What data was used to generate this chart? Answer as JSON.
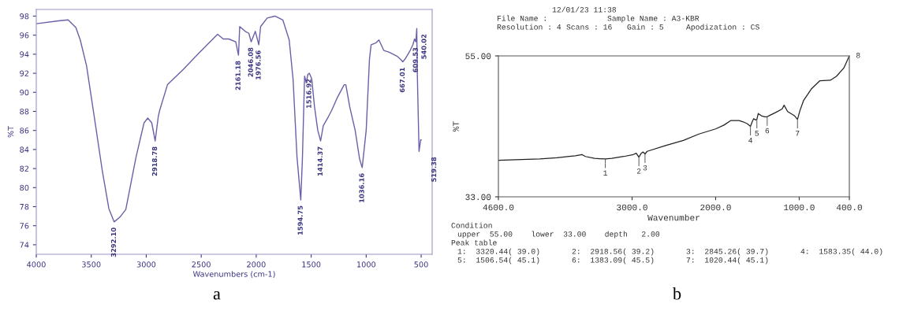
{
  "chart_data": [
    {
      "type": "line",
      "xlabel": "Wavenumbers (cm-1)",
      "ylabel": "%T",
      "xlim": [
        4000,
        400
      ],
      "xticks": [
        4000,
        3500,
        3000,
        2500,
        2000,
        1500,
        1000,
        500
      ],
      "ylim": [
        73,
        98.7
      ],
      "yticks": [
        74,
        76,
        78,
        80,
        82,
        84,
        86,
        88,
        90,
        92,
        94,
        96,
        98
      ],
      "grid": false,
      "series": [
        {
          "color": "#6a5fa8",
          "x": [
            4000,
            3800,
            3710,
            3640,
            3600,
            3543,
            3471,
            3400,
            3340,
            3292.1,
            3240,
            3186,
            3093,
            3020,
            2986,
            2950,
            2918.78,
            2890,
            2878,
            2807,
            2664,
            2472,
            2351,
            2300,
            2250,
            2186,
            2161.18,
            2150,
            2100,
            2067,
            2046.08,
            2008,
            1976.56,
            1960,
            1900,
            1829,
            1758,
            1700,
            1665,
            1629,
            1594.75,
            1580,
            1560,
            1545,
            1530,
            1516.92,
            1495,
            1470,
            1440,
            1414.37,
            1390,
            1350,
            1314,
            1260,
            1200,
            1185,
            1150,
            1100,
            1060,
            1036.16,
            1000,
            970,
            955,
            910,
            884,
            840,
            790,
            720,
            690,
            667.01,
            640,
            600,
            575,
            560,
            548,
            540.02,
            535,
            519.38,
            505,
            500
          ],
          "values": [
            97.2,
            97.5,
            97.6,
            96.8,
            95.5,
            92.8,
            87.3,
            81.8,
            77.8,
            76.4,
            76.9,
            77.7,
            83.2,
            86.8,
            87.3,
            86.8,
            84.9,
            87.5,
            88.1,
            90.8,
            92.4,
            94.7,
            96.1,
            95.6,
            95.6,
            95.3,
            93.9,
            96.9,
            96.4,
            96.2,
            95.3,
            96.4,
            95.0,
            96.9,
            97.8,
            98.0,
            97.6,
            95.5,
            91.4,
            83.2,
            78.7,
            83.0,
            91.7,
            91.0,
            91.9,
            92.0,
            91.4,
            88.5,
            86.0,
            84.9,
            86.5,
            87.3,
            88.1,
            89.5,
            90.8,
            90.8,
            88.5,
            86.0,
            83.0,
            82.1,
            86.0,
            93.5,
            95.0,
            95.2,
            95.5,
            94.4,
            94.2,
            93.8,
            93.5,
            93.2,
            93.6,
            94.4,
            95.0,
            95.6,
            95.3,
            96.7,
            92.0,
            83.8,
            85.0,
            85.0
          ]
        }
      ],
      "annotations": [
        {
          "text": "3292.10",
          "x": 3292.1,
          "y": 76.4
        },
        {
          "text": "2918.78",
          "x": 2918.78,
          "y": 84.9
        },
        {
          "text": "2161.18",
          "x": 2161.18,
          "y": 93.9
        },
        {
          "text": "2046.08",
          "x": 2046.08,
          "y": 95.3
        },
        {
          "text": "1976.56",
          "x": 1976.56,
          "y": 95.0
        },
        {
          "text": "1594.75",
          "x": 1594.75,
          "y": 78.7
        },
        {
          "text": "1516.92",
          "x": 1516.92,
          "y": 92.0
        },
        {
          "text": "1414.37",
          "x": 1414.37,
          "y": 84.9
        },
        {
          "text": "1036.16",
          "x": 1036.16,
          "y": 82.1
        },
        {
          "text": "667.01",
          "x": 667.01,
          "y": 93.2
        },
        {
          "text": "609.53",
          "x": 548,
          "y": 95.3
        },
        {
          "text": "540.02",
          "x": 540.02,
          "y": 96.7
        },
        {
          "text": "519.38",
          "x": 519.38,
          "y": 83.8
        },
        "a"
      ]
    },
    {
      "type": "line",
      "xlabel": "Wavenumber",
      "ylabel": "%T",
      "xlim": [
        4600,
        400
      ],
      "xticks": [
        {
          "value": 4600,
          "label": "4600.0"
        },
        {
          "value": 3000,
          "label": "3000.0"
        },
        {
          "value": 2000,
          "label": "2000.0"
        },
        {
          "value": 1000,
          "label": "1000.0"
        },
        {
          "value": 400,
          "label": "400.0"
        }
      ],
      "ylim": [
        33,
        55
      ],
      "yticks": [
        {
          "value": 33,
          "label": "33.00"
        },
        {
          "value": 55,
          "label": "55.00"
        }
      ],
      "grid": false,
      "series": [
        {
          "color": "#222222",
          "x": [
            4600,
            4400,
            4105,
            3900,
            3750,
            3680,
            3600,
            3560,
            3450,
            3320.44,
            3243,
            3100,
            2985,
            2950,
            2918.56,
            2890,
            2870,
            2845.26,
            2820,
            2600,
            2387,
            2200,
            2000,
            1900,
            1821,
            1720,
            1669,
            1620,
            1583.35,
            1560,
            1545,
            1520,
            1506.54,
            1490,
            1446,
            1410,
            1383.09,
            1340,
            1291,
            1205,
            1181,
            1138,
            1060,
            1020.44,
            990,
            949,
            857,
            755,
            628,
            555,
            466,
            400
          ],
          "values": [
            38.7,
            38.8,
            38.9,
            39.1,
            39.3,
            39.4,
            39.6,
            39.3,
            39.0,
            38.9,
            39.0,
            39.3,
            39.6,
            39.8,
            39.2,
            39.8,
            40.0,
            39.7,
            40.1,
            41.0,
            41.8,
            42.8,
            43.6,
            44.2,
            44.9,
            44.9,
            44.7,
            44.4,
            44.0,
            44.8,
            45.2,
            45.0,
            45.1,
            46.0,
            45.6,
            45.5,
            45.5,
            45.8,
            46.1,
            46.7,
            47.3,
            46.3,
            45.7,
            45.1,
            46.5,
            48.0,
            49.8,
            51.1,
            51.2,
            51.8,
            53.1,
            55.0
          ]
        }
      ],
      "annotations": [
        {
          "text": "1",
          "x": 3320.44,
          "y": 38.9
        },
        {
          "text": "2",
          "x": 2918.56,
          "y": 39.2
        },
        {
          "text": "3",
          "x": 2845.26,
          "y": 39.7
        },
        {
          "text": "4",
          "x": 1583.35,
          "y": 44.0
        },
        {
          "text": "5",
          "x": 1506.54,
          "y": 45.1
        },
        {
          "text": "6",
          "x": 1383.09,
          "y": 45.5
        },
        {
          "text": "7",
          "x": 1020.44,
          "y": 45.1
        },
        {
          "text": "8",
          "x": 400,
          "y": 55.0
        },
        "12/01/23 11:38",
        "File Name :",
        "Sample Name : A3-KBR",
        "Resolution : 4",
        "Scans : 16",
        "Gain : 5",
        "Apodization : CS",
        "Condition",
        "upper  55.00    lower  33.00    depth   2.00",
        "Peak table",
        "1:  3320.44( 39.0)",
        "2:  2918.56( 39.2)",
        "3:  2845.26( 39.7)",
        "4:  1583.35( 44.0)",
        "5:  1506.54( 45.1)",
        "6:  1383.09( 45.5)",
        "7:  1020.44( 45.1)",
        "b"
      ]
    }
  ]
}
